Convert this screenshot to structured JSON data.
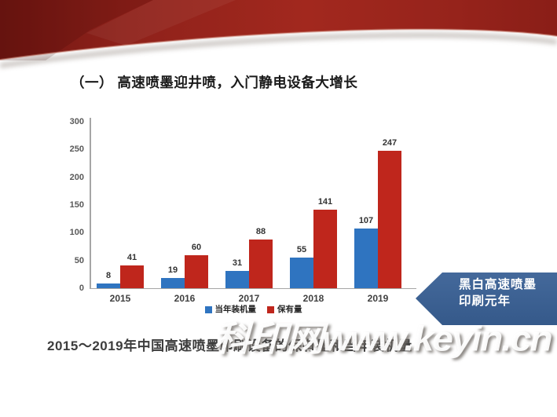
{
  "slide": {
    "title": "（一） 高速喷墨迎井喷，入门静电设备大增长",
    "callout": {
      "line1": "黑白高速喷墨",
      "line2": "印刷元年",
      "color": "#3a6191"
    },
    "watermark": "科印网www.keyin.cn",
    "band_color": "#9c241d"
  },
  "chart_data": {
    "type": "bar",
    "title": "2015～2019年中国高速喷墨印刷设备的保有量和当年装机量",
    "categories": [
      "2015",
      "2016",
      "2017",
      "2018",
      "2019"
    ],
    "series": [
      {
        "name": "当年装机量",
        "color": "#2f74c0",
        "values": [
          8,
          19,
          31,
          55,
          107
        ]
      },
      {
        "name": "保有量",
        "color": "#bf261c",
        "values": [
          41,
          60,
          88,
          141,
          247
        ]
      }
    ],
    "ylim": [
      0,
      300
    ],
    "ytick_step": 50,
    "yticks": [
      0,
      50,
      100,
      150,
      200,
      250,
      300
    ],
    "grid": false,
    "legend_position": "bottom",
    "xlabel": "",
    "ylabel": ""
  }
}
